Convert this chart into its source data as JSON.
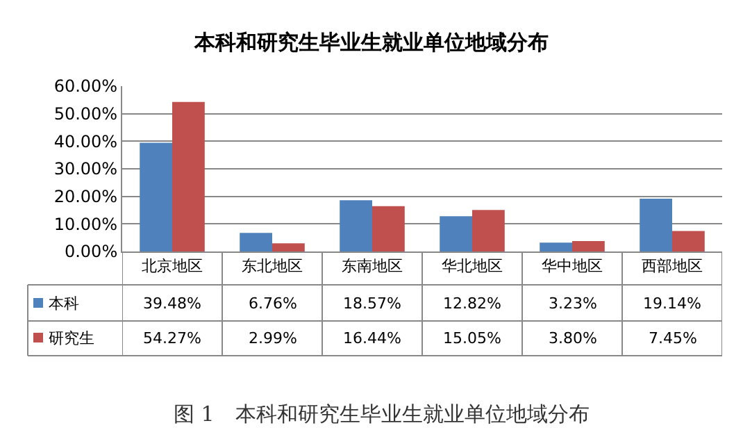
{
  "chart_data": {
    "type": "bar",
    "title": "本科和研究生毕业生就业单位地域分布",
    "categories": [
      "北京地区",
      "东北地区",
      "东南地区",
      "华北地区",
      "华中地区",
      "西部地区"
    ],
    "series": [
      {
        "name": "本科",
        "color": "#4f81bd",
        "values": [
          39.48,
          6.76,
          18.57,
          12.82,
          3.23,
          19.14
        ],
        "value_labels": [
          "39.48%",
          "6.76%",
          "18.57%",
          "12.82%",
          "3.23%",
          "19.14%"
        ]
      },
      {
        "name": "研究生",
        "color": "#c0504d",
        "values": [
          54.27,
          2.99,
          16.44,
          15.05,
          3.8,
          7.45
        ],
        "value_labels": [
          "54.27%",
          "2.99%",
          "16.44%",
          "15.05%",
          "3.80%",
          "7.45%"
        ]
      }
    ],
    "ylim": [
      0,
      60
    ],
    "yticks": [
      {
        "value": 0,
        "label": "0.00%"
      },
      {
        "value": 10,
        "label": "10.00%"
      },
      {
        "value": 20,
        "label": "20.00%"
      },
      {
        "value": 30,
        "label": "30.00%"
      },
      {
        "value": 40,
        "label": "40.00%"
      },
      {
        "value": 50,
        "label": "50.00%"
      },
      {
        "value": 60,
        "label": "60.00%"
      }
    ],
    "grid": "y",
    "legend": "bottom",
    "annotations": [
      "图 1　本科和研究生毕业生就业单位地域分布"
    ]
  }
}
